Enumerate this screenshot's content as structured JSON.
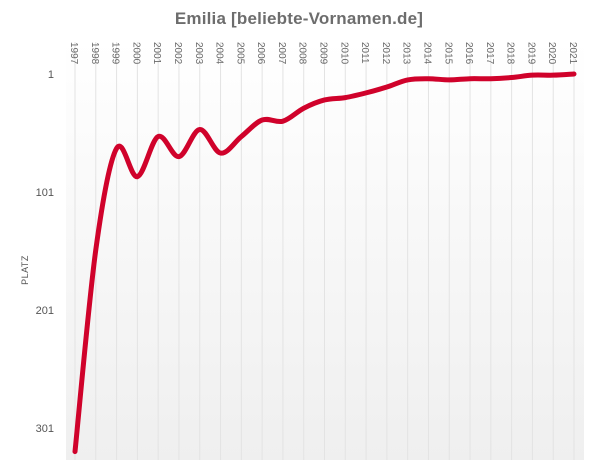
{
  "chart_data": {
    "type": "line",
    "title": "Emilia [beliebte-Vornamen.de]",
    "ylabel": "PLATZ",
    "xlabel": "",
    "reverse_y": true,
    "ylim": [
      1,
      321
    ],
    "yticks": [
      1,
      101,
      201,
      301
    ],
    "x": [
      "1997",
      "1998",
      "1999",
      "2000",
      "2001",
      "2002",
      "2003",
      "2004",
      "2005",
      "2006",
      "2007",
      "2008",
      "2009",
      "2010",
      "2011",
      "2012",
      "2013",
      "2014",
      "2015",
      "2016",
      "2017",
      "2018",
      "2019",
      "2020",
      "2021"
    ],
    "series": [
      {
        "values": [
          321,
          150,
          64,
          88,
          54,
          71,
          48,
          68,
          54,
          40,
          41,
          30,
          23,
          21,
          17,
          12,
          6,
          5,
          6,
          5,
          5,
          4,
          2,
          2,
          1
        ]
      }
    ],
    "grid": {
      "vertical": true,
      "horizontal": false
    },
    "colors": {
      "line": "#d0022b",
      "title": "#6d6d6d",
      "grid": "#e3e3e3"
    }
  }
}
